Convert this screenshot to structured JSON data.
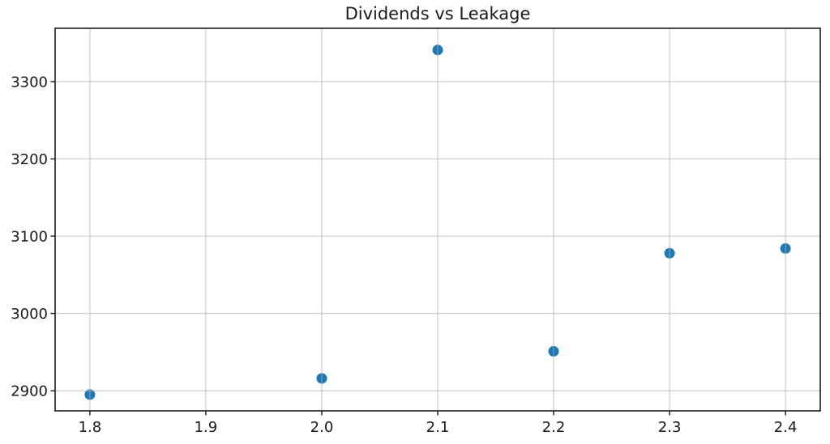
{
  "chart_data": {
    "type": "scatter",
    "title": "Dividends vs Leakage",
    "xlabel": "",
    "ylabel": "",
    "x": [
      1.8,
      2.0,
      2.1,
      2.2,
      2.3,
      2.4
    ],
    "y": [
      2895,
      2916,
      3341,
      2951,
      3078,
      3084
    ],
    "xlim": [
      1.77,
      2.43
    ],
    "ylim": [
      2874,
      3369
    ],
    "xticks": [
      1.8,
      1.9,
      2.0,
      2.1,
      2.2,
      2.3,
      2.4
    ],
    "xtick_labels": [
      "1.8",
      "1.9",
      "2.0",
      "2.1",
      "2.2",
      "2.3",
      "2.4"
    ],
    "yticks": [
      2900,
      3000,
      3100,
      3200,
      3300
    ],
    "ytick_labels": [
      "2900",
      "3000",
      "3100",
      "3200",
      "3300"
    ],
    "grid": true,
    "grid_over_points": true,
    "legend_position": "none",
    "colors": {
      "marker": "#1f77b4",
      "grid": "#b0b0b0",
      "axis": "#1a1a1a",
      "background": "#ffffff"
    },
    "marker_radius": 6.5
  }
}
